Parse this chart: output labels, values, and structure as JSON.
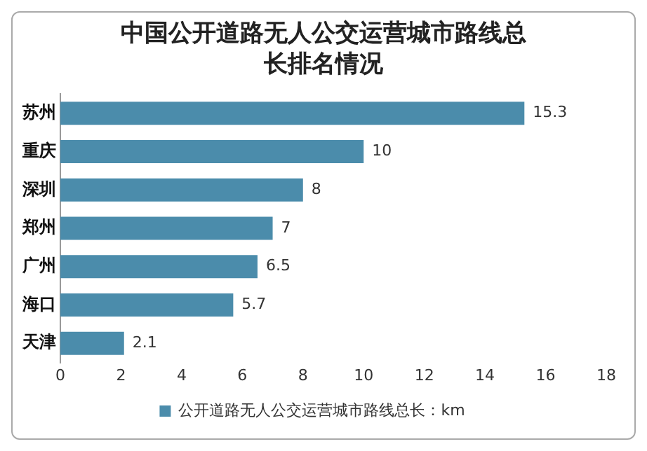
{
  "chart_data": {
    "type": "bar",
    "orientation": "horizontal",
    "title": "中国公开道路无人公交运营城市路线总长排名情况",
    "categories": [
      "苏州",
      "重庆",
      "深圳",
      "郑州",
      "广州",
      "海口",
      "天津"
    ],
    "series": [
      {
        "name": "公开道路无人公交运营城市路线总长：km",
        "color": "#4b8cab",
        "values": [
          15.3,
          10,
          8,
          7,
          6.5,
          5.7,
          2.1
        ]
      }
    ],
    "xlim": [
      0,
      18
    ],
    "xticks": [
      0,
      2,
      4,
      6,
      8,
      10,
      12,
      14,
      16,
      18
    ],
    "data_labels": true,
    "legend": "bottom",
    "grid": false
  }
}
